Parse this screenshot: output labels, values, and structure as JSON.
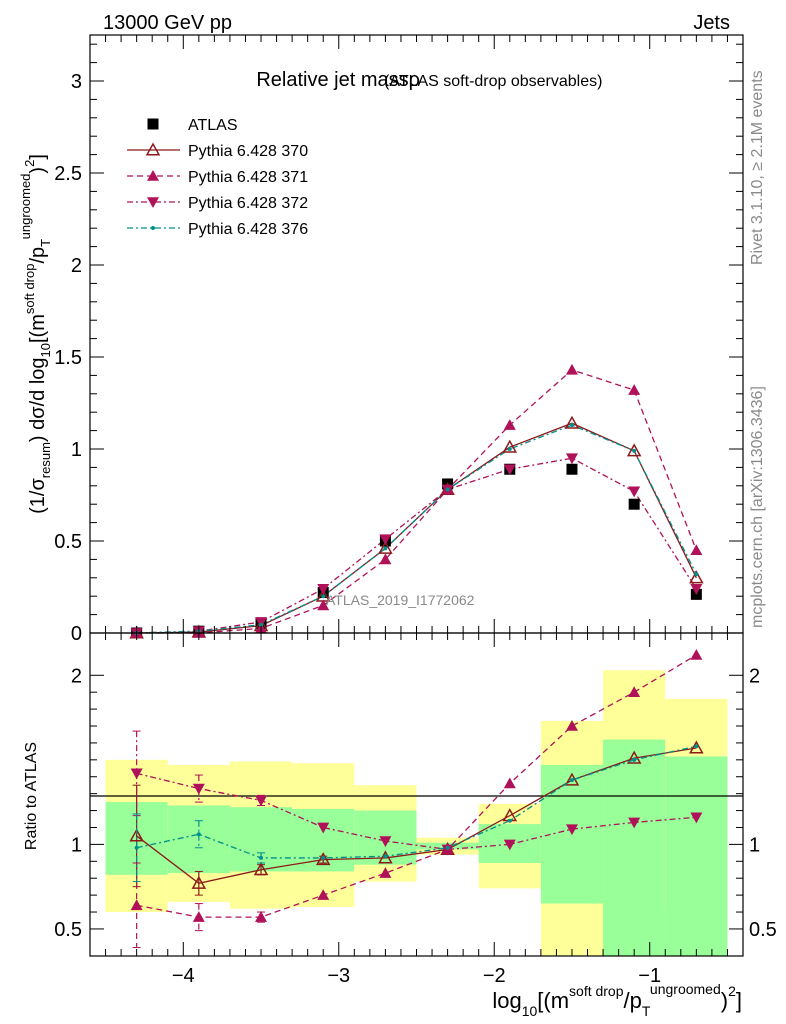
{
  "header": {
    "energy_label": "13000 GeV pp",
    "category_label": "Jets"
  },
  "side_labels": {
    "rivet": "Rivet 3.1.10, ≥ 2.1M events",
    "source": "mcplots.cern.ch [arXiv:1306.3436]"
  },
  "chart_data": [
    {
      "type": "line",
      "title": "Relative jet massρ",
      "subtitle": "(ATLAS soft-drop observables)",
      "watermark": "ATLAS_2019_I1772062",
      "xlabel": "log10[(m^{soft drop}/p_T^{ungroomed})^2]",
      "ylabel": "(1/σresum) dσ/d log10[(m^{soft drop}/p_T^{ungroomed})^2]",
      "xlim": [
        -4.6,
        -0.4
      ],
      "ylim": [
        0,
        3.25
      ],
      "x_ticks": [
        "−4",
        "−3",
        "−2",
        "−1"
      ],
      "y_ticks": [
        "0",
        "0.5",
        "1",
        "1.5",
        "2",
        "2.5",
        "3"
      ],
      "x": [
        -4.3,
        -3.9,
        -3.5,
        -3.1,
        -2.7,
        -2.3,
        -1.9,
        -1.5,
        -1.1,
        -0.7
      ],
      "legend_position": "top-left",
      "series": [
        {
          "name": "ATLAS",
          "marker": "square",
          "color": "#000000",
          "values": [
            0.0,
            0.01,
            0.05,
            0.22,
            0.5,
            0.81,
            0.89,
            0.89,
            0.7,
            0.21
          ]
        },
        {
          "name": "Pythia 6.428 370",
          "marker": "triangle-open",
          "line": "solid",
          "color": "#8b1a1a",
          "values": [
            0.0,
            0.005,
            0.04,
            0.2,
            0.46,
            0.78,
            1.01,
            1.14,
            0.99,
            0.3
          ]
        },
        {
          "name": "Pythia 6.428 371",
          "marker": "triangle-up",
          "line": "dashed",
          "color": "#b0125a",
          "values": [
            0.0,
            0.0,
            0.025,
            0.15,
            0.4,
            0.78,
            1.13,
            1.43,
            1.32,
            0.45
          ]
        },
        {
          "name": "Pythia 6.428 372",
          "marker": "triangle-down",
          "line": "dashdot",
          "color": "#b0125a",
          "values": [
            0.0,
            0.01,
            0.06,
            0.24,
            0.51,
            0.78,
            0.89,
            0.95,
            0.77,
            0.24
          ]
        },
        {
          "name": "Pythia 6.428 376",
          "marker": "dot",
          "line": "dashdot",
          "color": "#00908c",
          "values": [
            0.0,
            0.01,
            0.045,
            0.2,
            0.46,
            0.78,
            1.0,
            1.13,
            0.99,
            0.32
          ]
        }
      ]
    },
    {
      "type": "line",
      "ylabel": "Ratio to ATLAS",
      "xlim": [
        -4.6,
        -0.4
      ],
      "ylim": [
        0.34,
        2.25
      ],
      "y_ticks": [
        "0.5",
        "1",
        "2"
      ],
      "x": [
        -4.3,
        -3.9,
        -3.5,
        -3.1,
        -2.7,
        -2.3,
        -1.9,
        -1.5,
        -1.1,
        -0.7
      ],
      "reference_line": 1,
      "bands": {
        "bin_edges": [
          -4.5,
          -4.1,
          -3.7,
          -3.3,
          -2.9,
          -2.5,
          -2.1,
          -1.7,
          -1.3,
          -0.9,
          -0.5
        ],
        "yellow_low": [
          0.6,
          0.66,
          0.62,
          0.63,
          0.78,
          0.94,
          0.74,
          0.33,
          0.33,
          0.62
        ],
        "yellow_high": [
          1.5,
          1.47,
          1.49,
          1.48,
          1.35,
          1.04,
          1.24,
          1.73,
          2.03,
          1.86
        ],
        "green_low": [
          0.82,
          0.83,
          0.84,
          0.84,
          0.88,
          0.97,
          0.89,
          0.65,
          0.33,
          0.33
        ],
        "green_high": [
          1.25,
          1.23,
          1.22,
          1.21,
          1.2,
          1.01,
          1.12,
          1.47,
          1.62,
          1.52
        ]
      },
      "series": [
        {
          "name": "Pythia 6.428 370",
          "values": [
            1.05,
            0.77,
            0.85,
            0.91,
            0.92,
            0.97,
            1.17,
            1.38,
            1.51,
            1.57
          ],
          "err": [
            0.3,
            0.07,
            0.03,
            0.02,
            0.01,
            0.01,
            0.01,
            0.01,
            0.01,
            0.01
          ]
        },
        {
          "name": "Pythia 6.428 371",
          "values": [
            0.64,
            0.57,
            0.57,
            0.7,
            0.83,
            0.97,
            1.36,
            1.7,
            1.9,
            2.12
          ],
          "err": [
            0.25,
            0.08,
            0.03,
            0.01,
            0.01,
            0.01,
            0.01,
            0.01,
            0.01,
            0.01
          ]
        },
        {
          "name": "Pythia 6.428 372",
          "values": [
            1.42,
            1.33,
            1.26,
            1.1,
            1.02,
            0.97,
            1.0,
            1.09,
            1.13,
            1.16
          ],
          "err": [
            0.25,
            0.08,
            0.03,
            0.01,
            0.01,
            0.01,
            0.01,
            0.01,
            0.01,
            0.01
          ]
        },
        {
          "name": "Pythia 6.428 376",
          "values": [
            0.98,
            1.06,
            0.92,
            0.92,
            0.93,
            0.98,
            1.14,
            1.38,
            1.5,
            1.58
          ],
          "err": [
            0.2,
            0.08,
            0.03,
            0.01,
            0.01,
            0.01,
            0.01,
            0.01,
            0.01,
            0.01
          ]
        }
      ]
    }
  ]
}
